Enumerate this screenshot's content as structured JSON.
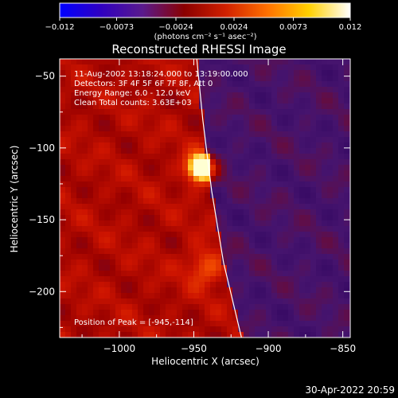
{
  "chart_data": {
    "type": "heatmap",
    "title": "Reconstructed RHESSI Image",
    "xlabel": "Heliocentric X (arcsec)",
    "ylabel": "Heliocentric Y (arcsec)",
    "xlim": [
      -1040,
      -845
    ],
    "ylim": [
      -232,
      -38
    ],
    "x_ticks": [
      -1000,
      -950,
      -900,
      -850
    ],
    "y_ticks": [
      -50,
      -100,
      -150,
      -200
    ],
    "x_tick_labels": [
      "−1000",
      "−950",
      "−900",
      "−850"
    ],
    "y_tick_labels": [
      "−50",
      "−100",
      "−150",
      "−200"
    ],
    "colorbar": {
      "range": [
        -0.012,
        0.012
      ],
      "ticks": [
        -0.012,
        -0.0073,
        -0.0024,
        0.0024,
        0.0073,
        0.012
      ],
      "tick_labels": [
        "−0.012",
        "−0.0073",
        "−0.0024",
        "0.0024",
        "0.0073",
        "0.012"
      ],
      "unit_label": "(photons cm⁻² s⁻¹ asec⁻²)",
      "colors": [
        "#0000ff",
        "#3000c0",
        "#5a1a8c",
        "#8a0000",
        "#d02000",
        "#ff7000",
        "#ffd000",
        "#ffffff"
      ]
    },
    "annotations": [
      "11-Aug-2002 13:18:24.000 to 13:19:00.000",
      "Detectors: 3F 4F 5F 6F 7F 8F, Att 0",
      "Energy Range: 6.0 - 12.0 keV",
      "Clean     Total counts: 3.63E+03"
    ],
    "peak_label": "Position of Peak = [-945,-114]",
    "peak": {
      "x": -945,
      "y": -114
    },
    "limb_curve": [
      [
        -948,
        -38
      ],
      [
        -944,
        -80
      ],
      [
        -938,
        -130
      ],
      [
        -930,
        -180
      ],
      [
        -918,
        -232
      ]
    ]
  },
  "timestamp": "30-Apr-2022 20:59"
}
